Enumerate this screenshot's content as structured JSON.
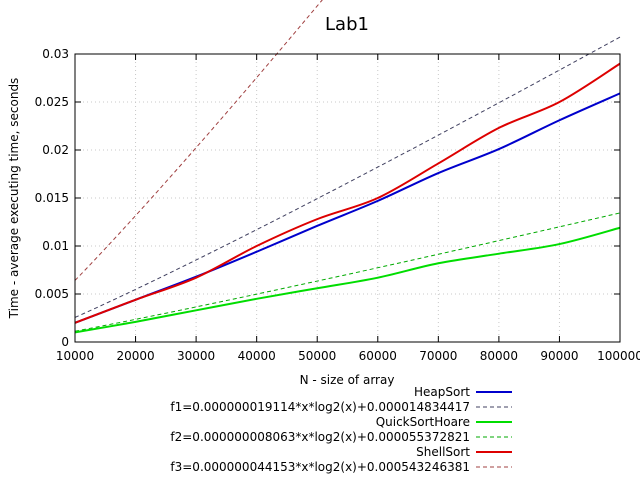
{
  "chart_data": {
    "type": "line",
    "title": "Lab1",
    "xlabel": "N - size of array",
    "ylabel": "Time - average executing time, seconds",
    "xlim": [
      10000,
      100000
    ],
    "ylim": [
      0,
      0.03
    ],
    "grid": true,
    "legend_position": "bottom-center",
    "x_ticks": [
      10000,
      20000,
      30000,
      40000,
      50000,
      60000,
      70000,
      80000,
      90000,
      100000
    ],
    "x_tick_labels": [
      "10000",
      "20000",
      "30000",
      "40000",
      "50000",
      "60000",
      "70000",
      "80000",
      "90000",
      "100000"
    ],
    "y_ticks": [
      0,
      0.005,
      0.01,
      0.015,
      0.02,
      0.025,
      0.03
    ],
    "y_tick_labels": [
      "0",
      "0.005",
      "0.01",
      "0.015",
      "0.02",
      "0.025",
      "0.03"
    ],
    "x": [
      10000,
      20000,
      30000,
      40000,
      50000,
      60000,
      70000,
      80000,
      90000,
      100000
    ],
    "series": [
      {
        "name": "HeapSort",
        "style": "solid",
        "color": "#0000cc",
        "values": [
          0.002,
          0.0044,
          0.0068,
          0.0094,
          0.0121,
          0.0147,
          0.0176,
          0.0201,
          0.0231,
          0.0259
        ]
      },
      {
        "name": "f1=0.000000019114*x*log2(x)+0.000014834417",
        "style": "dashed",
        "color": "#404060",
        "fit": {
          "a": 1.9114e-08,
          "b": 1.4834417e-05
        }
      },
      {
        "name": "QuickSortHoare",
        "style": "solid",
        "color": "#00dd00",
        "values": [
          0.001,
          0.0021,
          0.0033,
          0.0045,
          0.0056,
          0.0067,
          0.0082,
          0.0092,
          0.0102,
          0.0119
        ]
      },
      {
        "name": "f2=0.000000008063*x*log2(x)+0.000055372821",
        "style": "dashed",
        "color": "#00aa00",
        "fit": {
          "a": 8.063e-09,
          "b": 5.5372821e-05
        }
      },
      {
        "name": "ShellSort",
        "style": "solid",
        "color": "#dd0000",
        "values": [
          0.002,
          0.0044,
          0.0067,
          0.01,
          0.0128,
          0.015,
          0.0186,
          0.0223,
          0.025,
          0.029
        ]
      },
      {
        "name": "f3=0.000000044153*x*log2(x)+0.000543246381",
        "style": "dashed",
        "color": "#a04040",
        "fit": {
          "a": 4.4153e-08,
          "b": 0.000543246381
        }
      }
    ]
  }
}
